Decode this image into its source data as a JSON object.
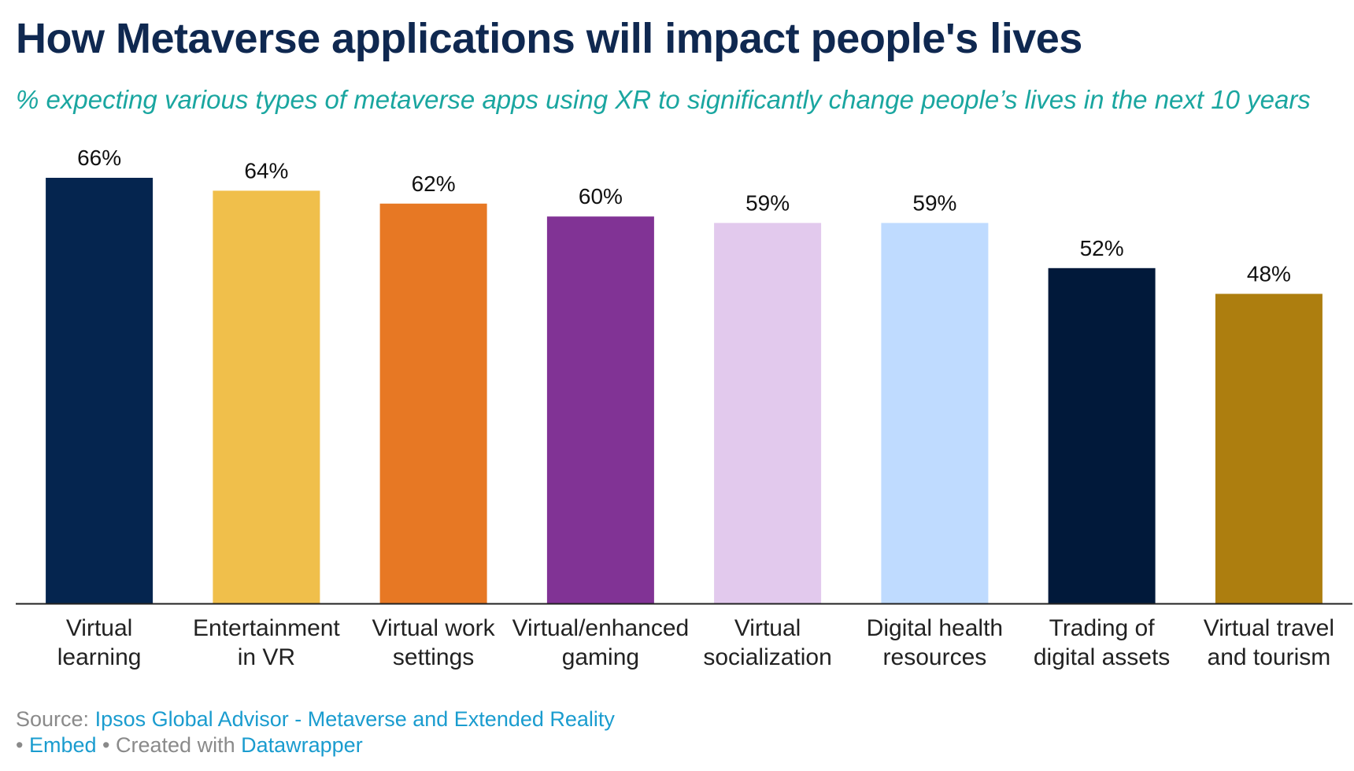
{
  "title": "How Metaverse applications will impact people's lives",
  "subtitle": "% expecting various types of metaverse apps using XR to significantly change people’s lives in the next 10 years",
  "chart_data": {
    "type": "bar",
    "categories": [
      [
        "Virtual",
        "learning"
      ],
      [
        "Entertainment",
        "in VR"
      ],
      [
        "Virtual work",
        "settings"
      ],
      [
        "Virtual/enhanced",
        "gaming"
      ],
      [
        "Virtual",
        "socialization"
      ],
      [
        "Digital health",
        "resources"
      ],
      [
        "Trading of",
        "digital assets"
      ],
      [
        "Virtual travel",
        "and tourism"
      ]
    ],
    "values": [
      66,
      64,
      62,
      60,
      59,
      59,
      52,
      48
    ],
    "value_labels": [
      "66%",
      "64%",
      "62%",
      "60%",
      "59%",
      "59%",
      "52%",
      "48%"
    ],
    "colors": [
      "#05254f",
      "#f0bf4b",
      "#e77824",
      "#813395",
      "#e2c9ed",
      "#bfdbff",
      "#01193a",
      "#ad7e0f"
    ],
    "ylim": [
      0,
      66
    ],
    "xlabel": "",
    "ylabel": ""
  },
  "footer": {
    "source_prefix": "Source:",
    "source_link": "Ipsos Global Advisor - Metaverse and Extended Reality",
    "embed": "Embed",
    "created_with": "Created with",
    "datawrapper": "Datawrapper"
  }
}
